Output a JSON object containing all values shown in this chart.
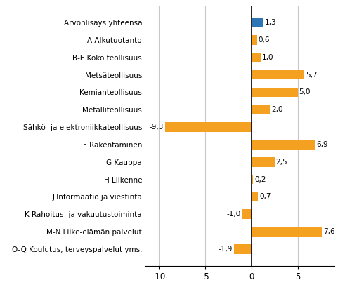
{
  "categories": [
    "O-Q Koulutus, terveyspalvelut yms.",
    "M-N Liike-elämän palvelut",
    "K Rahoitus- ja vakuutustoiminta",
    "J Informaatio ja viestintä",
    "H Liikenne",
    "G Kauppa",
    "F Rakentaminen",
    "Sähkö- ja elektroniikkateollisuus",
    "Metalliteollisuus",
    "Kemianteollisuus",
    "Metsäteollisuus",
    "B-E Koko teollisuus",
    "A Alkutuotanto",
    "Arvonlisäys yhteensä"
  ],
  "values": [
    -1.9,
    7.6,
    -1.0,
    0.7,
    0.2,
    2.5,
    6.9,
    -9.3,
    2.0,
    5.0,
    5.7,
    1.0,
    0.6,
    1.3
  ],
  "colors": [
    "#f4a020",
    "#f4a020",
    "#f4a020",
    "#f4a020",
    "#f4a020",
    "#f4a020",
    "#f4a020",
    "#f4a020",
    "#f4a020",
    "#f4a020",
    "#f4a020",
    "#f4a020",
    "#f4a020",
    "#2e75b6"
  ],
  "xlim": [
    -11.5,
    9.0
  ],
  "xticks": [
    -10,
    -5,
    0,
    5
  ],
  "background_color": "#ffffff",
  "grid_color": "#c8c8c8",
  "bar_height": 0.55,
  "label_fontsize": 7.5,
  "tick_fontsize": 8.5,
  "value_fontsize": 7.5
}
